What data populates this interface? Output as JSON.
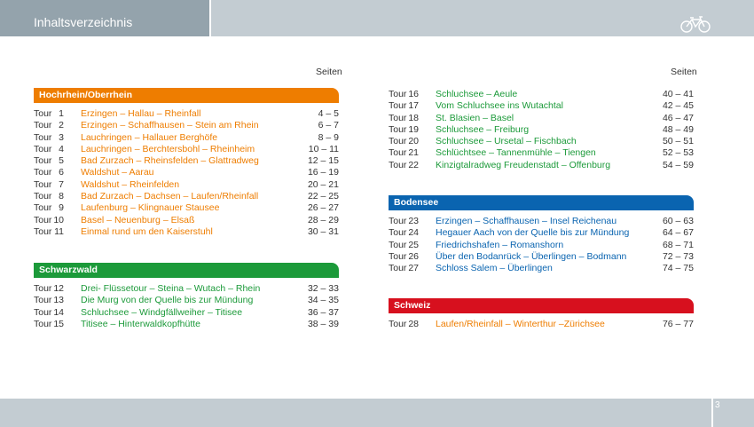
{
  "header": {
    "title": "Inhaltsverzeichnis"
  },
  "footer": {
    "page_number": "3"
  },
  "left": {
    "seiten_label": "Seiten",
    "sections": [
      {
        "title": "Hochrhein/Oberrhein",
        "color": "#ee7d00",
        "tours": [
          {
            "label": "Tour",
            "num": "1",
            "route": "Erzingen – Hallau – Rheinfall",
            "pages": "4 – 5"
          },
          {
            "label": "Tour",
            "num": "2",
            "route": "Erzingen – Schaffhausen – Stein am Rhein",
            "pages": "6 – 7"
          },
          {
            "label": "Tour",
            "num": "3",
            "route": "Lauchringen – Hallauer Berghöfe",
            "pages": "8 – 9"
          },
          {
            "label": "Tour",
            "num": "4",
            "route": "Lauchringen – Berchtersbohl – Rheinheim",
            "pages": "10 – 11"
          },
          {
            "label": "Tour",
            "num": "5",
            "route": "Bad Zurzach – Rheinsfelden – Glattradweg",
            "pages": "12 – 15"
          },
          {
            "label": "Tour",
            "num": "6",
            "route": "Waldshut – Aarau",
            "pages": "16 – 19"
          },
          {
            "label": "Tour",
            "num": "7",
            "route": "Waldshut – Rheinfelden",
            "pages": "20 – 21"
          },
          {
            "label": "Tour",
            "num": "8",
            "route": "Bad Zurzach – Dachsen – Laufen/Rheinfall",
            "pages": "22 – 25"
          },
          {
            "label": "Tour",
            "num": "9",
            "route": "Laufenburg – Klingnauer Stausee",
            "pages": "26 – 27"
          },
          {
            "label": "Tour",
            "num": "10",
            "route": "Basel – Neuenburg – Elsaß",
            "pages": "28 – 29"
          },
          {
            "label": "Tour",
            "num": "11",
            "route": "Einmal rund um den Kaiserstuhl",
            "pages": "30 – 31"
          }
        ]
      },
      {
        "title": "Schwarzwald",
        "color": "#1c9a3a",
        "tours": [
          {
            "label": "Tour",
            "num": "12",
            "route": "Drei- Flüssetour – Steina – Wutach – Rhein",
            "pages": "32 – 33"
          },
          {
            "label": "Tour",
            "num": "13",
            "route": "Die Murg von der Quelle bis zur Mündung",
            "pages": "34 – 35"
          },
          {
            "label": "Tour",
            "num": "14",
            "route": "Schluchsee – Windgfällweiher – Titisee",
            "pages": "36 – 37"
          },
          {
            "label": "Tour",
            "num": "15",
            "route": "Titisee – Hinterwaldkopfhütte",
            "pages": "38 – 39"
          }
        ]
      }
    ]
  },
  "right": {
    "seiten_label": "Seiten",
    "continued": {
      "color": "#1c9a3a",
      "tours": [
        {
          "label": "Tour",
          "num": "16",
          "route": "Schluchsee – Aeule",
          "pages": "40 – 41"
        },
        {
          "label": "Tour",
          "num": "17",
          "route": "Vom Schluchsee ins Wutachtal",
          "pages": "42 – 45"
        },
        {
          "label": "Tour",
          "num": "18",
          "route": "St. Blasien – Basel",
          "pages": "46 – 47"
        },
        {
          "label": "Tour",
          "num": "19",
          "route": "Schluchsee – Freiburg",
          "pages": "48 – 49"
        },
        {
          "label": "Tour",
          "num": "20",
          "route": "Schluchsee – Ursetal – Fischbach",
          "pages": "50 – 51"
        },
        {
          "label": "Tour",
          "num": "21",
          "route": "Schlüchtsee – Tannenmühle – Tiengen",
          "pages": "52 – 53"
        },
        {
          "label": "Tour",
          "num": "22",
          "route": "Kinzigtalradweg Freudenstadt – Offenburg",
          "pages": "54 – 59"
        }
      ]
    },
    "sections": [
      {
        "title": "Bodensee",
        "color": "#0a64b0",
        "tours": [
          {
            "label": "Tour",
            "num": "23",
            "route": "Erzingen – Schaffhausen – Insel Reichenau",
            "pages": "60 – 63"
          },
          {
            "label": "Tour",
            "num": "24",
            "route": "Hegauer Aach von der Quelle bis zur Mündung",
            "pages": "64 – 67"
          },
          {
            "label": "Tour",
            "num": "25",
            "route": "Friedrichshafen – Romanshorn",
            "pages": "68 – 71"
          },
          {
            "label": "Tour",
            "num": "26",
            "route": "Über den Bodanrück – Überlingen – Bodmann",
            "pages": "72 – 73"
          },
          {
            "label": "Tour",
            "num": "27",
            "route": "Schloss Salem – Überlingen",
            "pages": "74 – 75"
          }
        ]
      },
      {
        "title": "Schweiz",
        "color": "#d7101e",
        "tours": [
          {
            "label": "Tour",
            "num": "28",
            "route": "Laufen/Rheinfall – Winterthur –Zürichsee",
            "pages": "76 – 77"
          }
        ]
      }
    ]
  }
}
